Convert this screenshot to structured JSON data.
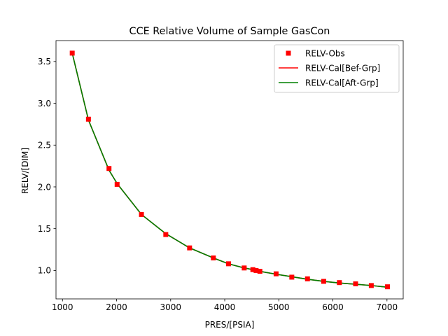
{
  "chart_data": {
    "type": "line",
    "title": "CCE Relative Volume of Sample GasCon",
    "xlabel": "PRES/[PSIA]",
    "ylabel": "RELV/[DIM]",
    "xlim": [
      880,
      7300
    ],
    "ylim": [
      0.66,
      3.75
    ],
    "xticks": [
      1000,
      2000,
      3000,
      4000,
      5000,
      6000,
      7000
    ],
    "yticks": [
      1.0,
      1.5,
      2.0,
      2.5,
      3.0,
      3.5
    ],
    "ytick_labels": [
      "1.0",
      "1.5",
      "2.0",
      "2.5",
      "3.0",
      "3.5"
    ],
    "grid": false,
    "legend_position": "top-right",
    "colors": {
      "observed": "#ff0000",
      "before_group": "#ff0000",
      "after_group": "#008000"
    },
    "series": [
      {
        "name": "RELV-Obs",
        "style": "markers",
        "x": [
          1180,
          1480,
          1860,
          2010,
          2460,
          2910,
          3350,
          3790,
          4070,
          4360,
          4520,
          4580,
          4650,
          4950,
          5240,
          5530,
          5830,
          6120,
          6420,
          6710,
          7010
        ],
        "y": [
          3.6,
          2.81,
          2.22,
          2.03,
          1.67,
          1.43,
          1.27,
          1.15,
          1.08,
          1.03,
          1.01,
          1.0,
          0.99,
          0.96,
          0.92,
          0.9,
          0.87,
          0.855,
          0.84,
          0.82,
          0.805
        ]
      },
      {
        "name": "RELV-Cal[Bef-Grp]",
        "style": "line",
        "x": [
          1180,
          1480,
          1860,
          2010,
          2460,
          2910,
          3350,
          3790,
          4070,
          4360,
          4520,
          4580,
          4650,
          4950,
          5240,
          5530,
          5830,
          6120,
          6420,
          6710,
          7010
        ],
        "y": [
          3.6,
          2.8,
          2.2,
          2.04,
          1.67,
          1.44,
          1.27,
          1.15,
          1.08,
          1.03,
          1.01,
          1.0,
          0.99,
          0.955,
          0.925,
          0.895,
          0.87,
          0.85,
          0.835,
          0.82,
          0.8
        ]
      },
      {
        "name": "RELV-Cal[Aft-Grp]",
        "style": "line",
        "x": [
          1180,
          1480,
          1860,
          2010,
          2460,
          2910,
          3350,
          3790,
          4070,
          4360,
          4520,
          4580,
          4650,
          4950,
          5240,
          5530,
          5830,
          6120,
          6420,
          6710,
          7010
        ],
        "y": [
          3.6,
          2.8,
          2.2,
          2.04,
          1.67,
          1.44,
          1.27,
          1.15,
          1.08,
          1.03,
          1.01,
          1.0,
          0.99,
          0.955,
          0.925,
          0.895,
          0.87,
          0.85,
          0.835,
          0.82,
          0.8
        ]
      }
    ]
  }
}
